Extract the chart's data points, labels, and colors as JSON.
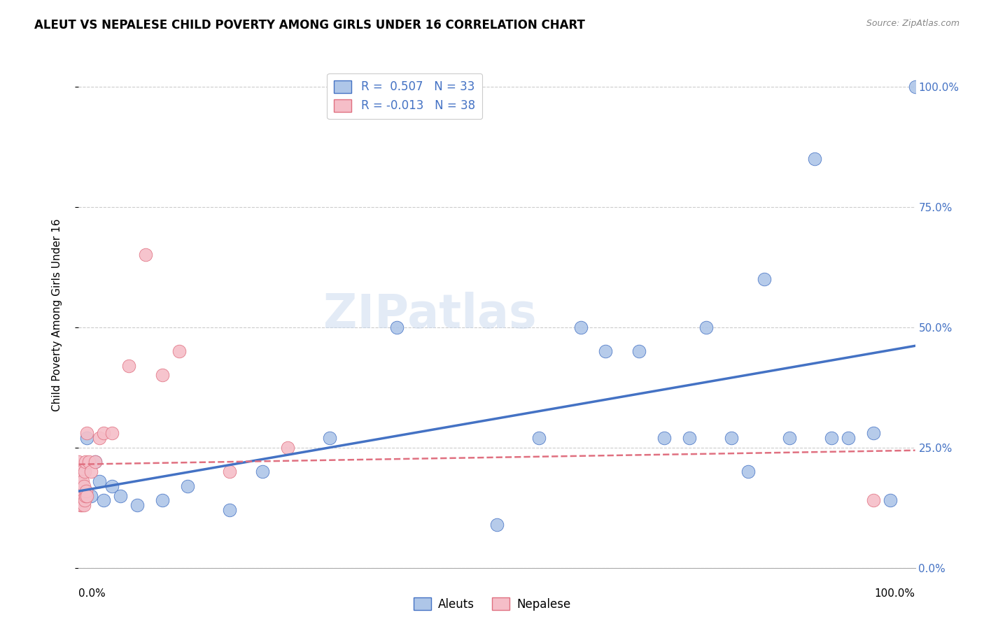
{
  "title": "ALEUT VS NEPALESE CHILD POVERTY AMONG GIRLS UNDER 16 CORRELATION CHART",
  "source": "Source: ZipAtlas.com",
  "ylabel": "Child Poverty Among Girls Under 16",
  "ytick_labels": [
    "0.0%",
    "25.0%",
    "50.0%",
    "75.0%",
    "100.0%"
  ],
  "ytick_values": [
    0.0,
    0.25,
    0.5,
    0.75,
    1.0
  ],
  "xtick_labels": [
    "0.0%",
    "100.0%"
  ],
  "xtick_values": [
    0.0,
    1.0
  ],
  "aleut_R": 0.507,
  "aleut_N": 33,
  "nepalese_R": -0.013,
  "nepalese_N": 38,
  "aleut_color": "#aec6e8",
  "nepalese_color": "#f5bec8",
  "aleut_line_color": "#4472c4",
  "nepalese_line_color": "#e07080",
  "aleut_x": [
    0.005,
    0.01,
    0.015,
    0.02,
    0.025,
    0.03,
    0.04,
    0.05,
    0.07,
    0.1,
    0.13,
    0.18,
    0.22,
    0.3,
    0.38,
    0.5,
    0.55,
    0.6,
    0.63,
    0.67,
    0.7,
    0.73,
    0.75,
    0.78,
    0.8,
    0.82,
    0.85,
    0.88,
    0.9,
    0.92,
    0.95,
    0.97,
    1.0
  ],
  "aleut_y": [
    0.2,
    0.27,
    0.15,
    0.22,
    0.18,
    0.14,
    0.17,
    0.15,
    0.13,
    0.14,
    0.17,
    0.12,
    0.2,
    0.27,
    0.5,
    0.09,
    0.27,
    0.5,
    0.45,
    0.45,
    0.27,
    0.27,
    0.5,
    0.27,
    0.2,
    0.6,
    0.27,
    0.85,
    0.27,
    0.27,
    0.28,
    0.14,
    1.0
  ],
  "nepalese_x": [
    0.0,
    0.0,
    0.0,
    0.0,
    0.0,
    0.001,
    0.001,
    0.002,
    0.002,
    0.003,
    0.003,
    0.003,
    0.004,
    0.004,
    0.005,
    0.005,
    0.006,
    0.006,
    0.007,
    0.007,
    0.008,
    0.008,
    0.009,
    0.01,
    0.01,
    0.012,
    0.015,
    0.02,
    0.025,
    0.03,
    0.04,
    0.06,
    0.08,
    0.1,
    0.12,
    0.18,
    0.25,
    0.95
  ],
  "nepalese_y": [
    0.15,
    0.17,
    0.19,
    0.2,
    0.22,
    0.14,
    0.16,
    0.13,
    0.18,
    0.14,
    0.15,
    0.2,
    0.13,
    0.17,
    0.14,
    0.18,
    0.13,
    0.17,
    0.14,
    0.2,
    0.15,
    0.22,
    0.16,
    0.15,
    0.28,
    0.22,
    0.2,
    0.22,
    0.27,
    0.28,
    0.28,
    0.42,
    0.65,
    0.4,
    0.45,
    0.2,
    0.25,
    0.14
  ],
  "background_color": "#ffffff",
  "grid_color": "#cccccc",
  "watermark": "ZIPatlas"
}
